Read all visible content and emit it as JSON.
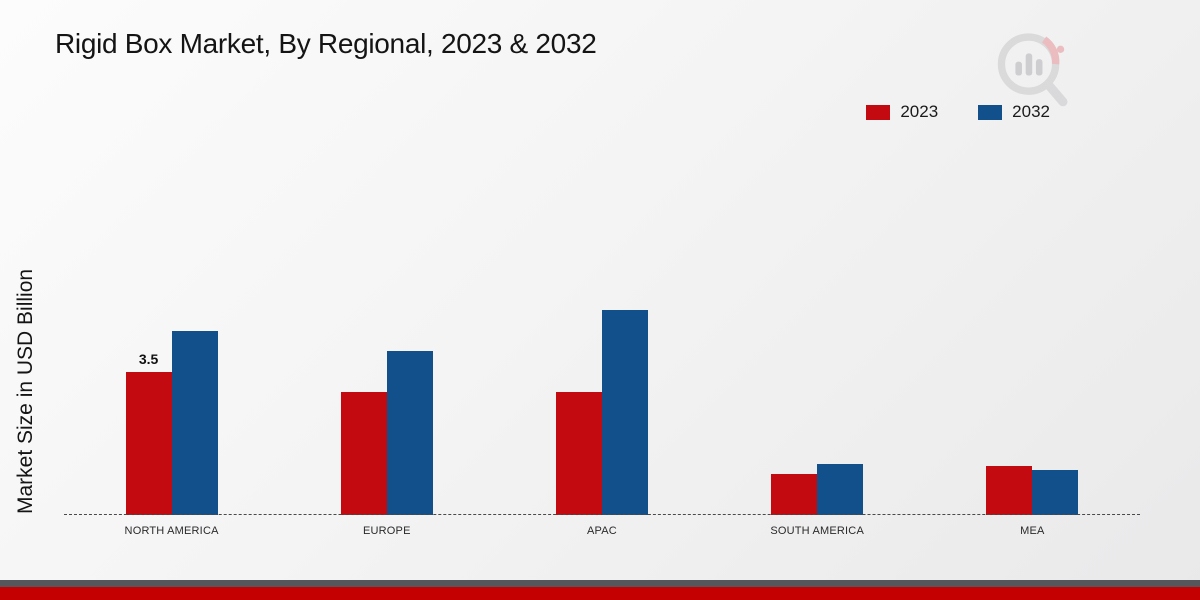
{
  "page": {
    "title": "Rigid Box Market, By Regional, 2023 & 2032",
    "ylabel": "Market Size in USD Billion"
  },
  "icons": {
    "logo": "magnifier-bar-chart-logo-watermark"
  },
  "chart_data": {
    "type": "bar",
    "title": "Rigid Box Market, By Regional, 2023 & 2032",
    "ylabel": "Market Size in USD Billion",
    "xlabel": "",
    "categories": [
      "NORTH AMERICA",
      "EUROPE",
      "APAC",
      "SOUTH AMERICA",
      "MEA"
    ],
    "series": [
      {
        "name": "2023",
        "color": "#c20a10",
        "values": [
          3.5,
          3.0,
          3.0,
          1.0,
          1.2
        ]
      },
      {
        "name": "2032",
        "color": "#12508b",
        "values": [
          4.5,
          4.0,
          5.0,
          1.25,
          1.1
        ]
      }
    ],
    "data_labels": [
      {
        "category_index": 0,
        "series_index": 0,
        "text": "3.5"
      }
    ],
    "ylim": [
      0,
      5.5
    ],
    "baseline_style": "dashed",
    "grid": false,
    "legend_position": "top-right",
    "footer_accent_color": "#c40000"
  }
}
